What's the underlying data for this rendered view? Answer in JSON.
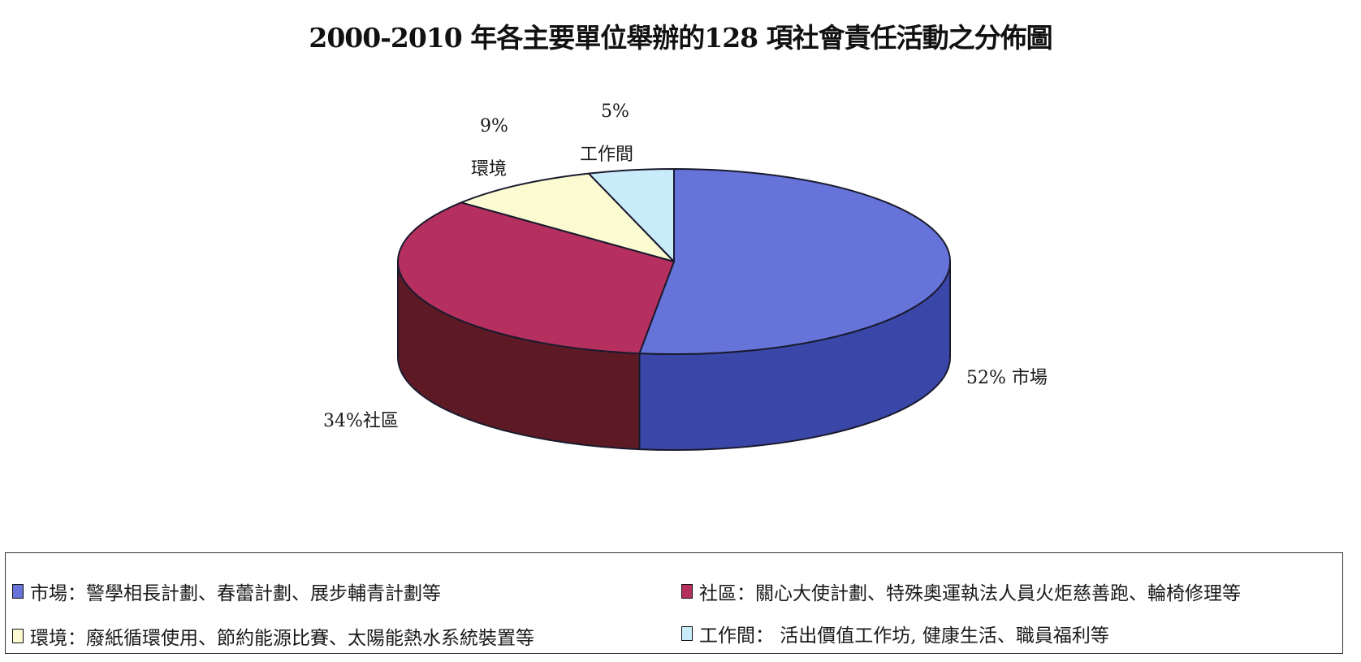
{
  "chart_data": {
    "type": "pie",
    "title": "2000-2010 年各主要單位舉辦的128 項社會責任活動之分佈圖",
    "slices": [
      {
        "name": "市場",
        "value": 52,
        "label": "52% 市場",
        "color": "#6673d9",
        "side_color": "#3b47a8"
      },
      {
        "name": "社區",
        "value": 34,
        "label": "34%社區",
        "color": "#b5305f",
        "side_color": "#5e1a24"
      },
      {
        "name": "環境",
        "value": 9,
        "label_pct": "9%",
        "label_name": "環境",
        "color": "#fbfbd2",
        "side_color": "#d8d8a8"
      },
      {
        "name": "工作間",
        "value": 5,
        "label_pct": "5%",
        "label_name": "工作間",
        "color": "#c9ecfb",
        "side_color": "#9cc6da"
      }
    ]
  },
  "legend": {
    "items": [
      {
        "text": "市場：警學相長計劃、春蕾計劃、展步輔青計劃等",
        "color": "#6673d9"
      },
      {
        "text": "社區：關心大使計劃、特殊奧運執法人員火炬慈善跑、輪椅修理等",
        "color": "#b5305f"
      },
      {
        "text": "環境：廢紙循環使用、節約能源比賽、太陽能熱水系統裝置等",
        "color": "#fbfbd2"
      },
      {
        "text": "工作間： 活出價值工作坊, 健康生活、職員福利等",
        "color": "#c9ecfb"
      }
    ]
  }
}
